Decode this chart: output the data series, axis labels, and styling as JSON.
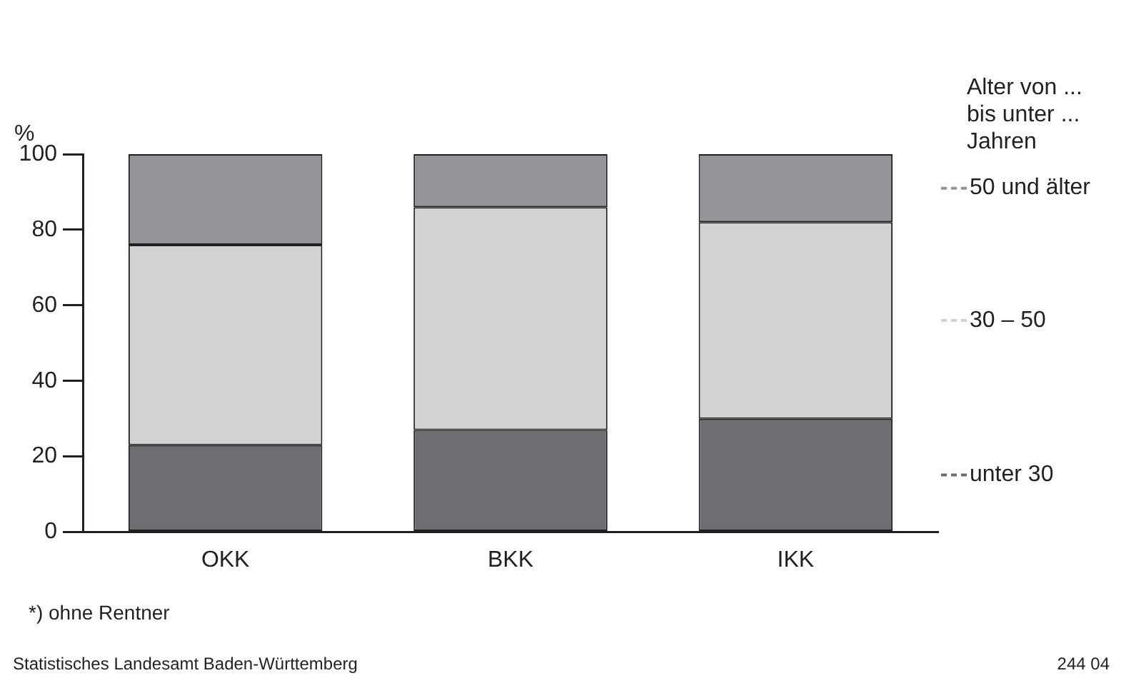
{
  "chart_data": {
    "type": "bar",
    "stacked": true,
    "ylabel": "%",
    "legend_title": "Alter von ...\nbis unter ...\nJahren",
    "categories": [
      "OKK",
      "BKK",
      "IKK"
    ],
    "series": [
      {
        "name": "unter 30",
        "color": "#6d6e71",
        "values": [
          23,
          27,
          30
        ]
      },
      {
        "name": "30 – 50",
        "color": "#d1d2d4",
        "values": [
          53,
          59,
          52
        ]
      },
      {
        "name": "50 und älter",
        "color": "#939598",
        "values": [
          24,
          14,
          18
        ]
      }
    ],
    "ylim": [
      0,
      100
    ],
    "yticks": [
      0,
      20,
      40,
      60,
      80,
      100
    ],
    "grid": false,
    "legend": "right",
    "annotations": [
      "*) ohne Rentner",
      "Statistisches Landesamt Baden-Württemberg",
      "244 04"
    ]
  }
}
